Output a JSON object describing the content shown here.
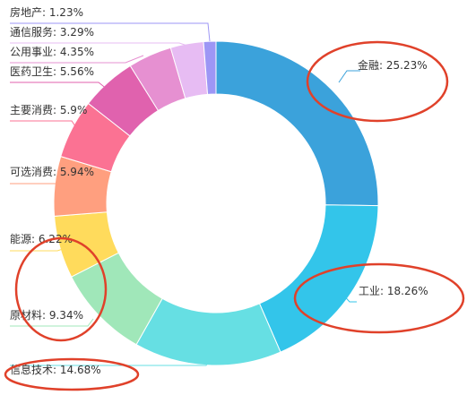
{
  "chart_data": {
    "type": "pie",
    "title": "",
    "slices": [
      {
        "name": "金融",
        "value": 25.23,
        "label": "金融: 25.23%",
        "color": "#3ba2db"
      },
      {
        "name": "工业",
        "value": 18.26,
        "label": "工业: 18.26%",
        "color": "#33c5ea"
      },
      {
        "name": "信息技术",
        "value": 14.68,
        "label": "信息技术: 14.68%",
        "color": "#66dfe3"
      },
      {
        "name": "原材料",
        "value": 9.34,
        "label": "原材料: 9.34%",
        "color": "#a0e7b9"
      },
      {
        "name": "能源",
        "value": 6.22,
        "label": "能源: 6.22%",
        "color": "#ffdb5c"
      },
      {
        "name": "可选消费",
        "value": 5.94,
        "label": "可选消费: 5.94%",
        "color": "#ff9f7f"
      },
      {
        "name": "主要消费",
        "value": 5.9,
        "label": "主要消费: 5.9%",
        "color": "#fb7293"
      },
      {
        "name": "医药卫生",
        "value": 5.56,
        "label": "医药卫生: 5.56%",
        "color": "#e062ae"
      },
      {
        "name": "公用事业",
        "value": 4.35,
        "label": "公用事业: 4.35%",
        "color": "#e690d1"
      },
      {
        "name": "通信服务",
        "value": 3.29,
        "label": "通信服务: 3.29%",
        "color": "#e7bcf3"
      },
      {
        "name": "房地产",
        "value": 1.23,
        "label": "房地产: 1.23%",
        "color": "#9d96f5"
      }
    ],
    "annotation_color": "#e0412a"
  }
}
